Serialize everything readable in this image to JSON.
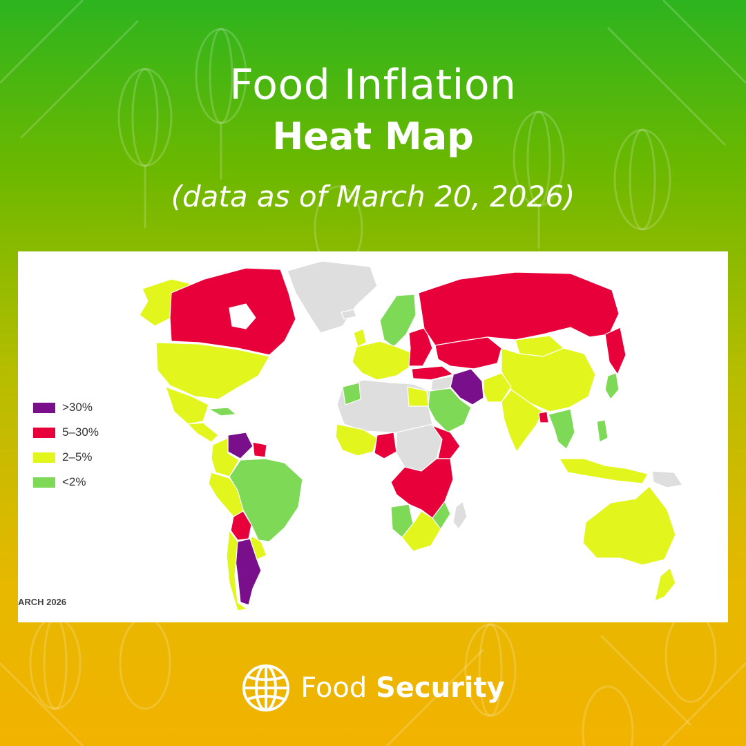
{
  "header": {
    "title_line1": "Food Inflation",
    "title_line2": "Heat Map",
    "subtitle": "(data as of March 20, 2026)"
  },
  "map": {
    "date_stamp": "ARCH 2026",
    "legend": [
      {
        "label": ">30%",
        "color": "#7a0f8c"
      },
      {
        "label": "5–30%",
        "color": "#e8003a"
      },
      {
        "label": "2–5%",
        "color": "#e2f51c"
      },
      {
        "label": "<2%",
        "color": "#7ed957"
      }
    ],
    "no_data_color": "#dedede",
    "regions": [
      {
        "name": "Canada",
        "category": "5–30%"
      },
      {
        "name": "Alaska",
        "category": "2–5%"
      },
      {
        "name": "United States",
        "category": "2–5%"
      },
      {
        "name": "Greenland",
        "category": "no data"
      },
      {
        "name": "Mexico",
        "category": "2–5%"
      },
      {
        "name": "Venezuela",
        "category": ">30%"
      },
      {
        "name": "Colombia",
        "category": "2–5%"
      },
      {
        "name": "Brazil",
        "category": "<2%"
      },
      {
        "name": "Peru",
        "category": "2–5%"
      },
      {
        "name": "Bolivia",
        "category": "5–30%"
      },
      {
        "name": "Argentina",
        "category": ">30%"
      },
      {
        "name": "Chile",
        "category": "2–5%"
      },
      {
        "name": "Russia",
        "category": "5–30%"
      },
      {
        "name": "Kazakhstan",
        "category": "5–30%"
      },
      {
        "name": "China",
        "category": "2–5%"
      },
      {
        "name": "Mongolia",
        "category": "2–5%"
      },
      {
        "name": "India",
        "category": "2–5%"
      },
      {
        "name": "Iran",
        "category": ">30%"
      },
      {
        "name": "Saudi Arabia",
        "category": "<2%"
      },
      {
        "name": "Scandinavia",
        "category": "<2%"
      },
      {
        "name": "Europe",
        "category": "2–5%"
      },
      {
        "name": "Eastern Europe",
        "category": "5–30%"
      },
      {
        "name": "Nigeria",
        "category": "5–30%"
      },
      {
        "name": "Ethiopia",
        "category": "5–30%"
      },
      {
        "name": "Central Africa",
        "category": "5–30%"
      },
      {
        "name": "Southern Africa",
        "category": "2–5%"
      },
      {
        "name": "Namibia",
        "category": "<2%"
      },
      {
        "name": "North Africa",
        "category": "no data"
      },
      {
        "name": "Australia",
        "category": "2–5%"
      },
      {
        "name": "Indonesia",
        "category": "2–5%"
      },
      {
        "name": "Southeast Asia",
        "category": "<2%"
      },
      {
        "name": "New Zealand",
        "category": "2–5%"
      }
    ]
  },
  "footer": {
    "brand_regular": "Food",
    "brand_bold": "Security"
  }
}
